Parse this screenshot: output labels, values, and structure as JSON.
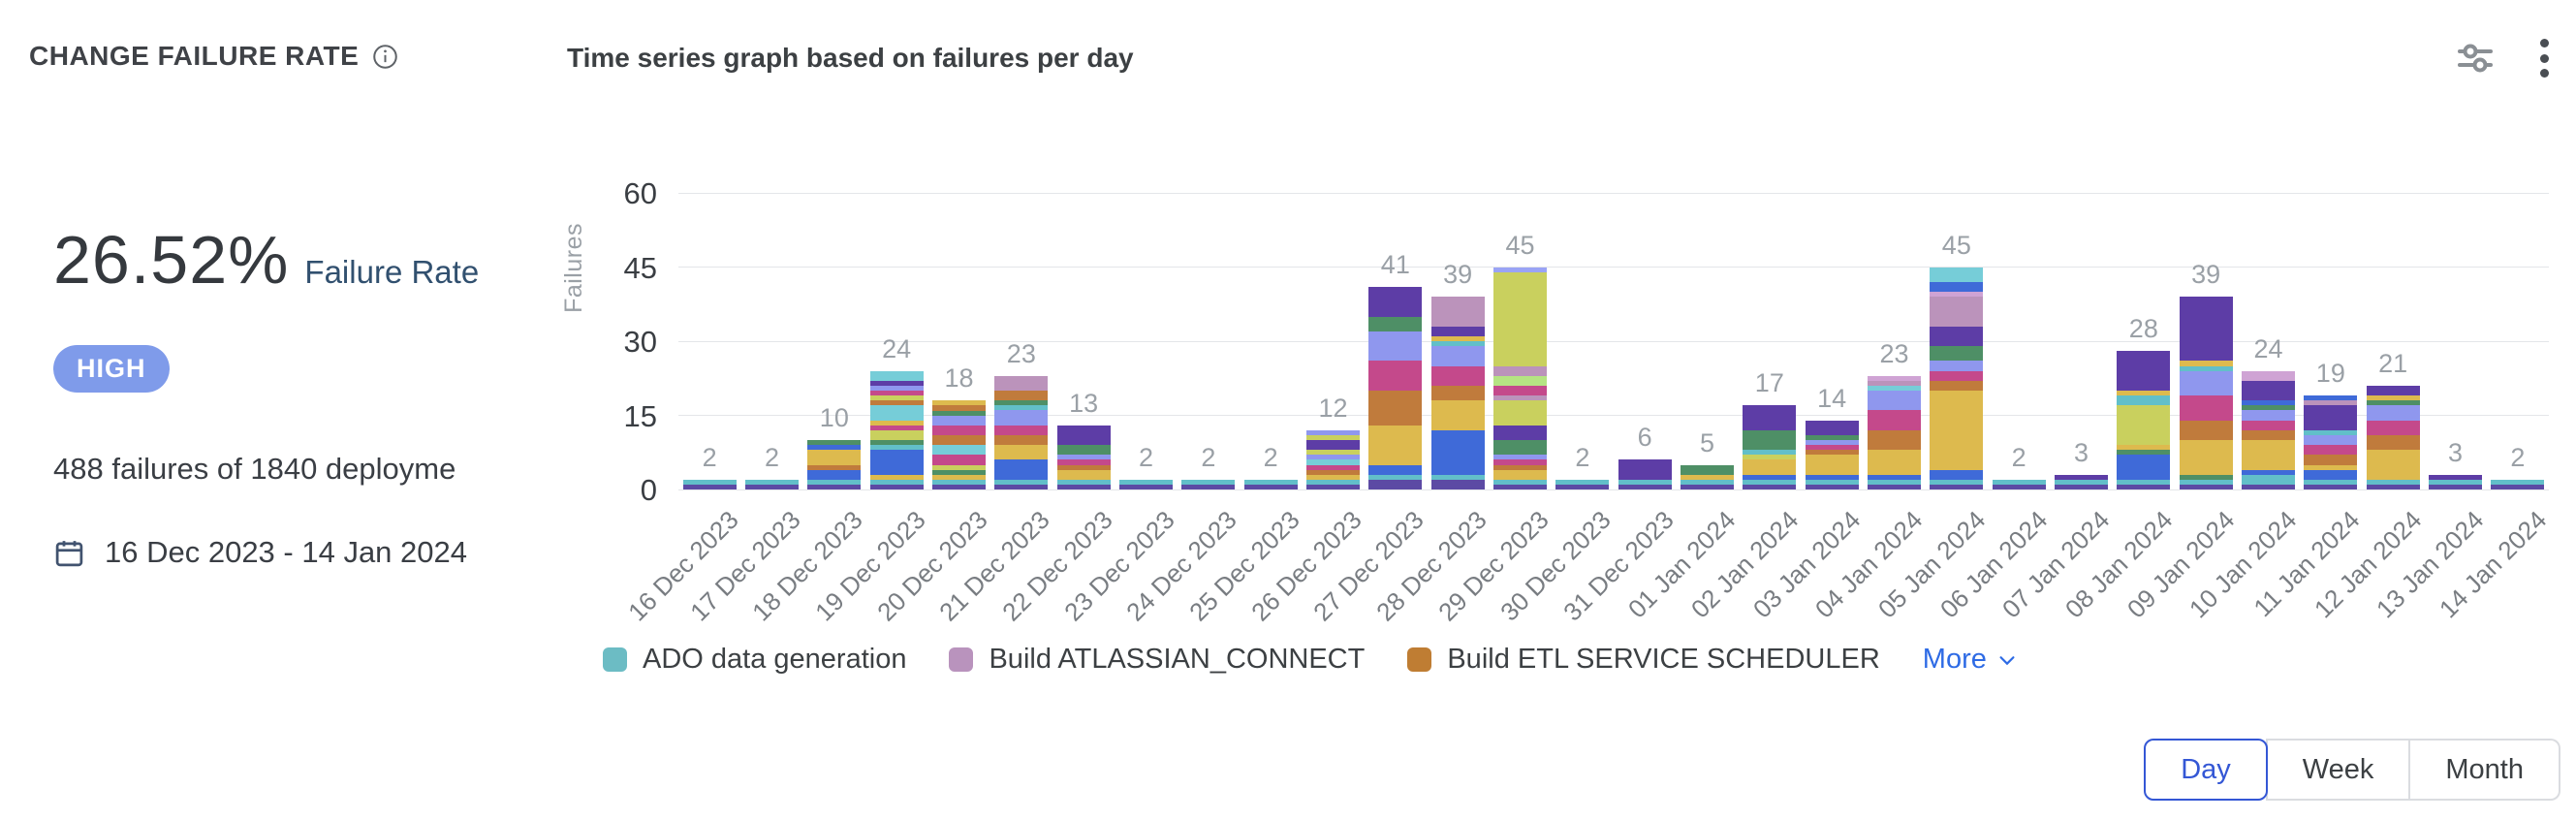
{
  "header": {
    "title": "CHANGE FAILURE RATE",
    "chart_title": "Time series graph based on failures per day"
  },
  "summary": {
    "rate": "26.52%",
    "rate_label": "Failure Rate",
    "severity": "HIGH",
    "severity_color": "#7f9bea",
    "detail": "488 failures of 1840 deployme",
    "date_range": "16 Dec 2023 - 14 Jan 2024"
  },
  "chart_data": {
    "type": "bar",
    "stacked": true,
    "title": "Time series graph based on failures per day",
    "xlabel": "",
    "ylabel": "Failures",
    "ylim": [
      0,
      60
    ],
    "yticks": [
      0,
      15,
      30,
      45,
      60
    ],
    "grid": true,
    "categories": [
      "16 Dec 2023",
      "17 Dec 2023",
      "18 Dec 2023",
      "19 Dec 2023",
      "20 Dec 2023",
      "21 Dec 2023",
      "22 Dec 2023",
      "23 Dec 2023",
      "24 Dec 2023",
      "25 Dec 2023",
      "26 Dec 2023",
      "27 Dec 2023",
      "28 Dec 2023",
      "29 Dec 2023",
      "30 Dec 2023",
      "31 Dec 2023",
      "01 Jan 2024",
      "02 Jan 2024",
      "03 Jan 2024",
      "04 Jan 2024",
      "05 Jan 2024",
      "06 Jan 2024",
      "07 Jan 2024",
      "08 Jan 2024",
      "09 Jan 2024",
      "10 Jan 2024",
      "11 Jan 2024",
      "12 Jan 2024",
      "13 Jan 2024",
      "14 Jan 2024"
    ],
    "totals": [
      2,
      2,
      10,
      24,
      18,
      23,
      13,
      2,
      2,
      2,
      12,
      41,
      39,
      45,
      2,
      6,
      5,
      17,
      14,
      23,
      45,
      2,
      3,
      28,
      39,
      24,
      19,
      21,
      3,
      2
    ],
    "palette": {
      "indigo": "#5c4aa4",
      "teal": "#62bfc9",
      "blue": "#3f6ad8",
      "mustard": "#ddba4e",
      "ochre": "#c07b3c",
      "green": "#4e8f66",
      "magenta": "#c4498b",
      "periwinkle": "#8f97ee",
      "violet": "#5d3da6",
      "mauve": "#bb93bb",
      "lime": "#c9d05e",
      "lightgreen": "#b5e383",
      "cyan": "#76cdd8",
      "pink": "#cfa3d4",
      "sky": "#9aa3f5"
    },
    "bars": [
      [
        [
          "indigo",
          1
        ],
        [
          "teal",
          1
        ]
      ],
      [
        [
          "indigo",
          1
        ],
        [
          "teal",
          1
        ]
      ],
      [
        [
          "indigo",
          1
        ],
        [
          "teal",
          1
        ],
        [
          "blue",
          2
        ],
        [
          "ochre",
          1
        ],
        [
          "mustard",
          3
        ],
        [
          "blue",
          1
        ],
        [
          "green",
          1
        ]
      ],
      [
        [
          "indigo",
          1
        ],
        [
          "teal",
          1
        ],
        [
          "mustard",
          1
        ],
        [
          "blue",
          5
        ],
        [
          "teal",
          1
        ],
        [
          "green",
          1
        ],
        [
          "lime",
          2
        ],
        [
          "magenta",
          1
        ],
        [
          "mustard",
          1
        ],
        [
          "cyan",
          3
        ],
        [
          "ochre",
          1
        ],
        [
          "lime",
          1
        ],
        [
          "magenta",
          1
        ],
        [
          "periwinkle",
          1
        ],
        [
          "violet",
          1
        ],
        [
          "cyan",
          2
        ]
      ],
      [
        [
          "indigo",
          1
        ],
        [
          "teal",
          1
        ],
        [
          "mustard",
          1
        ],
        [
          "green",
          1
        ],
        [
          "lime",
          1
        ],
        [
          "magenta",
          2
        ],
        [
          "cyan",
          2
        ],
        [
          "ochre",
          2
        ],
        [
          "magenta",
          2
        ],
        [
          "periwinkle",
          2
        ],
        [
          "green",
          1
        ],
        [
          "ochre",
          1
        ],
        [
          "mustard",
          1
        ]
      ],
      [
        [
          "indigo",
          1
        ],
        [
          "teal",
          1
        ],
        [
          "blue",
          4
        ],
        [
          "mustard",
          3
        ],
        [
          "ochre",
          2
        ],
        [
          "magenta",
          2
        ],
        [
          "periwinkle",
          3
        ],
        [
          "teal",
          1
        ],
        [
          "green",
          1
        ],
        [
          "ochre",
          2
        ],
        [
          "mauve",
          3
        ]
      ],
      [
        [
          "indigo",
          1
        ],
        [
          "teal",
          1
        ],
        [
          "mustard",
          2
        ],
        [
          "ochre",
          1
        ],
        [
          "magenta",
          1
        ],
        [
          "periwinkle",
          1
        ],
        [
          "green",
          2
        ],
        [
          "violet",
          4
        ]
      ],
      [
        [
          "indigo",
          1
        ],
        [
          "teal",
          1
        ]
      ],
      [
        [
          "indigo",
          1
        ],
        [
          "teal",
          1
        ]
      ],
      [
        [
          "indigo",
          1
        ],
        [
          "teal",
          1
        ]
      ],
      [
        [
          "indigo",
          1
        ],
        [
          "teal",
          1
        ],
        [
          "mustard",
          1
        ],
        [
          "ochre",
          1
        ],
        [
          "magenta",
          1
        ],
        [
          "cyan",
          1
        ],
        [
          "periwinkle",
          1
        ],
        [
          "lime",
          1
        ],
        [
          "violet",
          2
        ],
        [
          "lime",
          1
        ],
        [
          "periwinkle",
          1
        ]
      ],
      [
        [
          "indigo",
          2
        ],
        [
          "teal",
          1
        ],
        [
          "blue",
          2
        ],
        [
          "mustard",
          8
        ],
        [
          "ochre",
          7
        ],
        [
          "magenta",
          6
        ],
        [
          "periwinkle",
          6
        ],
        [
          "green",
          3
        ],
        [
          "violet",
          6
        ]
      ],
      [
        [
          "indigo",
          2
        ],
        [
          "teal",
          1
        ],
        [
          "blue",
          9
        ],
        [
          "mustard",
          6
        ],
        [
          "ochre",
          3
        ],
        [
          "magenta",
          4
        ],
        [
          "periwinkle",
          4
        ],
        [
          "teal",
          1
        ],
        [
          "mustard",
          1
        ],
        [
          "violet",
          2
        ],
        [
          "mauve",
          6
        ]
      ],
      [
        [
          "indigo",
          1
        ],
        [
          "teal",
          1
        ],
        [
          "mustard",
          2
        ],
        [
          "ochre",
          1
        ],
        [
          "magenta",
          1
        ],
        [
          "periwinkle",
          1
        ],
        [
          "green",
          3
        ],
        [
          "violet",
          3
        ],
        [
          "lime",
          5
        ],
        [
          "mauve",
          1
        ],
        [
          "magenta",
          2
        ],
        [
          "lightgreen",
          2
        ],
        [
          "mauve",
          2
        ],
        [
          "lime",
          19
        ],
        [
          "sky",
          1
        ]
      ],
      [
        [
          "indigo",
          1
        ],
        [
          "teal",
          1
        ]
      ],
      [
        [
          "indigo",
          1
        ],
        [
          "teal",
          1
        ],
        [
          "violet",
          4
        ]
      ],
      [
        [
          "indigo",
          1
        ],
        [
          "teal",
          1
        ],
        [
          "mustard",
          1
        ],
        [
          "green",
          2
        ]
      ],
      [
        [
          "indigo",
          1
        ],
        [
          "teal",
          1
        ],
        [
          "blue",
          1
        ],
        [
          "mustard",
          3
        ],
        [
          "lime",
          1
        ],
        [
          "teal",
          1
        ],
        [
          "green",
          4
        ],
        [
          "violet",
          5
        ]
      ],
      [
        [
          "indigo",
          1
        ],
        [
          "teal",
          1
        ],
        [
          "blue",
          1
        ],
        [
          "mustard",
          4
        ],
        [
          "ochre",
          1
        ],
        [
          "magenta",
          1
        ],
        [
          "periwinkle",
          1
        ],
        [
          "green",
          1
        ],
        [
          "violet",
          3
        ]
      ],
      [
        [
          "indigo",
          1
        ],
        [
          "teal",
          1
        ],
        [
          "blue",
          1
        ],
        [
          "mustard",
          5
        ],
        [
          "ochre",
          4
        ],
        [
          "magenta",
          4
        ],
        [
          "periwinkle",
          4
        ],
        [
          "cyan",
          1
        ],
        [
          "mauve",
          1
        ],
        [
          "pink",
          1
        ]
      ],
      [
        [
          "indigo",
          1
        ],
        [
          "teal",
          1
        ],
        [
          "blue",
          2
        ],
        [
          "mustard",
          16
        ],
        [
          "ochre",
          2
        ],
        [
          "magenta",
          2
        ],
        [
          "periwinkle",
          2
        ],
        [
          "green",
          3
        ],
        [
          "violet",
          4
        ],
        [
          "mauve",
          6
        ],
        [
          "pink",
          1
        ],
        [
          "blue",
          2
        ],
        [
          "cyan",
          3
        ]
      ],
      [
        [
          "indigo",
          1
        ],
        [
          "teal",
          1
        ]
      ],
      [
        [
          "indigo",
          1
        ],
        [
          "teal",
          1
        ],
        [
          "violet",
          1
        ]
      ],
      [
        [
          "indigo",
          1
        ],
        [
          "teal",
          1
        ],
        [
          "blue",
          5
        ],
        [
          "green",
          1
        ],
        [
          "mustard",
          1
        ],
        [
          "lime",
          8
        ],
        [
          "teal",
          2
        ],
        [
          "mustard",
          1
        ],
        [
          "violet",
          8
        ]
      ],
      [
        [
          "indigo",
          1
        ],
        [
          "teal",
          1
        ],
        [
          "green",
          1
        ],
        [
          "mustard",
          7
        ],
        [
          "ochre",
          4
        ],
        [
          "magenta",
          5
        ],
        [
          "periwinkle",
          5
        ],
        [
          "teal",
          1
        ],
        [
          "mustard",
          1
        ],
        [
          "violet",
          13
        ]
      ],
      [
        [
          "indigo",
          1
        ],
        [
          "teal",
          2
        ],
        [
          "blue",
          1
        ],
        [
          "mustard",
          6
        ],
        [
          "ochre",
          2
        ],
        [
          "magenta",
          2
        ],
        [
          "periwinkle",
          2
        ],
        [
          "green",
          1
        ],
        [
          "blue",
          1
        ],
        [
          "violet",
          4
        ],
        [
          "pink",
          2
        ]
      ],
      [
        [
          "indigo",
          1
        ],
        [
          "teal",
          1
        ],
        [
          "blue",
          2
        ],
        [
          "mustard",
          1
        ],
        [
          "ochre",
          2
        ],
        [
          "magenta",
          2
        ],
        [
          "periwinkle",
          2
        ],
        [
          "teal",
          1
        ],
        [
          "violet",
          5
        ],
        [
          "mauve",
          1
        ],
        [
          "blue",
          1
        ]
      ],
      [
        [
          "indigo",
          1
        ],
        [
          "teal",
          1
        ],
        [
          "mustard",
          6
        ],
        [
          "ochre",
          3
        ],
        [
          "magenta",
          3
        ],
        [
          "periwinkle",
          3
        ],
        [
          "green",
          1
        ],
        [
          "mustard",
          1
        ],
        [
          "violet",
          2
        ]
      ],
      [
        [
          "indigo",
          1
        ],
        [
          "teal",
          1
        ],
        [
          "violet",
          1
        ]
      ],
      [
        [
          "indigo",
          1
        ],
        [
          "teal",
          1
        ]
      ]
    ],
    "legend": [
      {
        "label": "ADO data generation",
        "color": "#6cbcc4"
      },
      {
        "label": "Build ATLASSIAN_CONNECT",
        "color": "#b993bd"
      },
      {
        "label": "Build ETL SERVICE SCHEDULER",
        "color": "#bf7d33"
      }
    ],
    "legend_position": "bottom",
    "more_label": "More"
  },
  "footer": {
    "granularity": [
      {
        "label": "Day",
        "selected": true
      },
      {
        "label": "Week",
        "selected": false
      },
      {
        "label": "Month",
        "selected": false
      }
    ]
  }
}
